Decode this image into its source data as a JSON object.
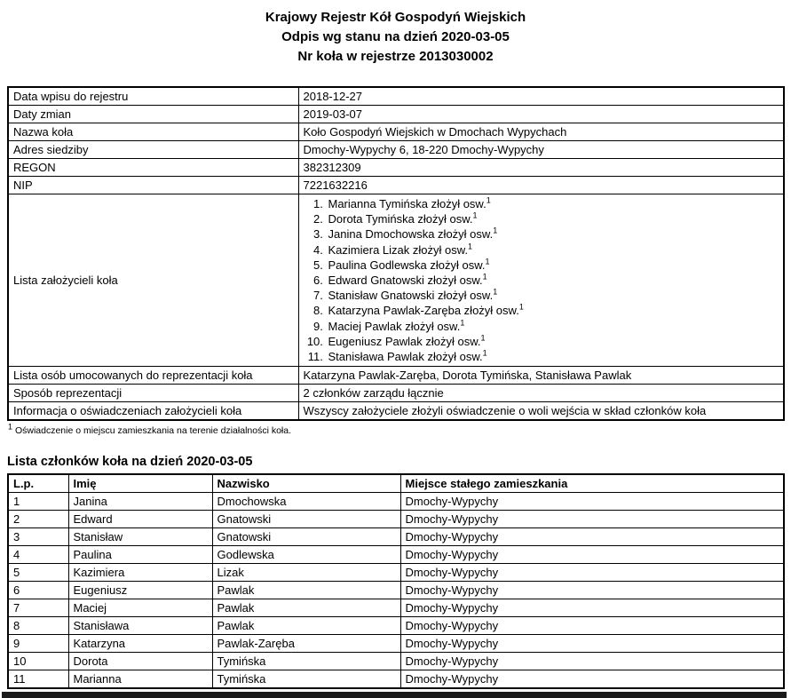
{
  "header": {
    "line1": "Krajowy Rejestr Kół Gospodyń Wiejskich",
    "line2": "Odpis wg stanu na dzień 2020-03-05",
    "line3": "Nr koła w rejestrze 2013030002"
  },
  "registry": {
    "rows_top": [
      {
        "label": "Data wpisu do rejestru",
        "value": "2018-12-27"
      },
      {
        "label": "Daty zmian",
        "value": "2019-03-07"
      },
      {
        "label": "Nazwa koła",
        "value": "Koło Gospodyń Wiejskich w Dmochach Wypychach"
      },
      {
        "label": "Adres siedziby",
        "value": "Dmochy-Wypychy 6, 18-220 Dmochy-Wypychy"
      },
      {
        "label": "REGON",
        "value": "382312309"
      },
      {
        "label": "NIP",
        "value": "7221632216"
      }
    ],
    "founders": {
      "label": "Lista założycieli koła",
      "items": [
        {
          "text": "Marianna Tymińska złożył osw.",
          "ref": "1"
        },
        {
          "text": "Dorota Tymińska złożył osw.",
          "ref": "1"
        },
        {
          "text": "Janina Dmochowska złożył osw.",
          "ref": "1"
        },
        {
          "text": "Kazimiera Lizak złożył osw.",
          "ref": "1"
        },
        {
          "text": "Paulina Godlewska złożył osw.",
          "ref": "1"
        },
        {
          "text": "Edward Gnatowski złożył osw.",
          "ref": "1"
        },
        {
          "text": "Stanisław Gnatowski złożył osw.",
          "ref": "1"
        },
        {
          "text": "Katarzyna Pawlak-Zaręba złożył osw.",
          "ref": "1"
        },
        {
          "text": "Maciej Pawlak złożył osw.",
          "ref": "1"
        },
        {
          "text": "Eugeniusz Pawlak złożył osw.",
          "ref": "1"
        },
        {
          "text": "Stanisława Pawlak złożył osw.",
          "ref": "1"
        }
      ]
    },
    "rows_bottom": [
      {
        "label": "Lista osób umocowanych do reprezentacji koła",
        "value": "Katarzyna Pawlak-Zaręba, Dorota Tymińska, Stanisława Pawlak"
      },
      {
        "label": "Sposób reprezentacji",
        "value": "2 członków zarządu łącznie"
      },
      {
        "label": "Informacja o oświadczeniach założycieli koła",
        "value": "Wszyscy założyciele złożyli oświadczenie o woli wejścia w skład członków koła"
      }
    ]
  },
  "footnote": {
    "marker": "1",
    "text": "Oświadczenie o miejscu zamieszkania na terenie działalności koła."
  },
  "members": {
    "title": "Lista członków koła na dzień 2020-03-05",
    "columns": [
      "L.p.",
      "Imię",
      "Nazwisko",
      "Miejsce stałego zamieszkania"
    ],
    "rows": [
      [
        "1",
        "Janina",
        "Dmochowska",
        "Dmochy-Wypychy"
      ],
      [
        "2",
        "Edward",
        "Gnatowski",
        "Dmochy-Wypychy"
      ],
      [
        "3",
        "Stanisław",
        "Gnatowski",
        "Dmochy-Wypychy"
      ],
      [
        "4",
        "Paulina",
        "Godlewska",
        "Dmochy-Wypychy"
      ],
      [
        "5",
        "Kazimiera",
        "Lizak",
        "Dmochy-Wypychy"
      ],
      [
        "6",
        "Eugeniusz",
        "Pawlak",
        "Dmochy-Wypychy"
      ],
      [
        "7",
        "Maciej",
        "Pawlak",
        "Dmochy-Wypychy"
      ],
      [
        "8",
        "Stanisława",
        "Pawlak",
        "Dmochy-Wypychy"
      ],
      [
        "9",
        "Katarzyna",
        "Pawlak-Zaręba",
        "Dmochy-Wypychy"
      ],
      [
        "10",
        "Dorota",
        "Tymińska",
        "Dmochy-Wypychy"
      ],
      [
        "11",
        "Marianna",
        "Tymińska",
        "Dmochy-Wypychy"
      ]
    ]
  }
}
